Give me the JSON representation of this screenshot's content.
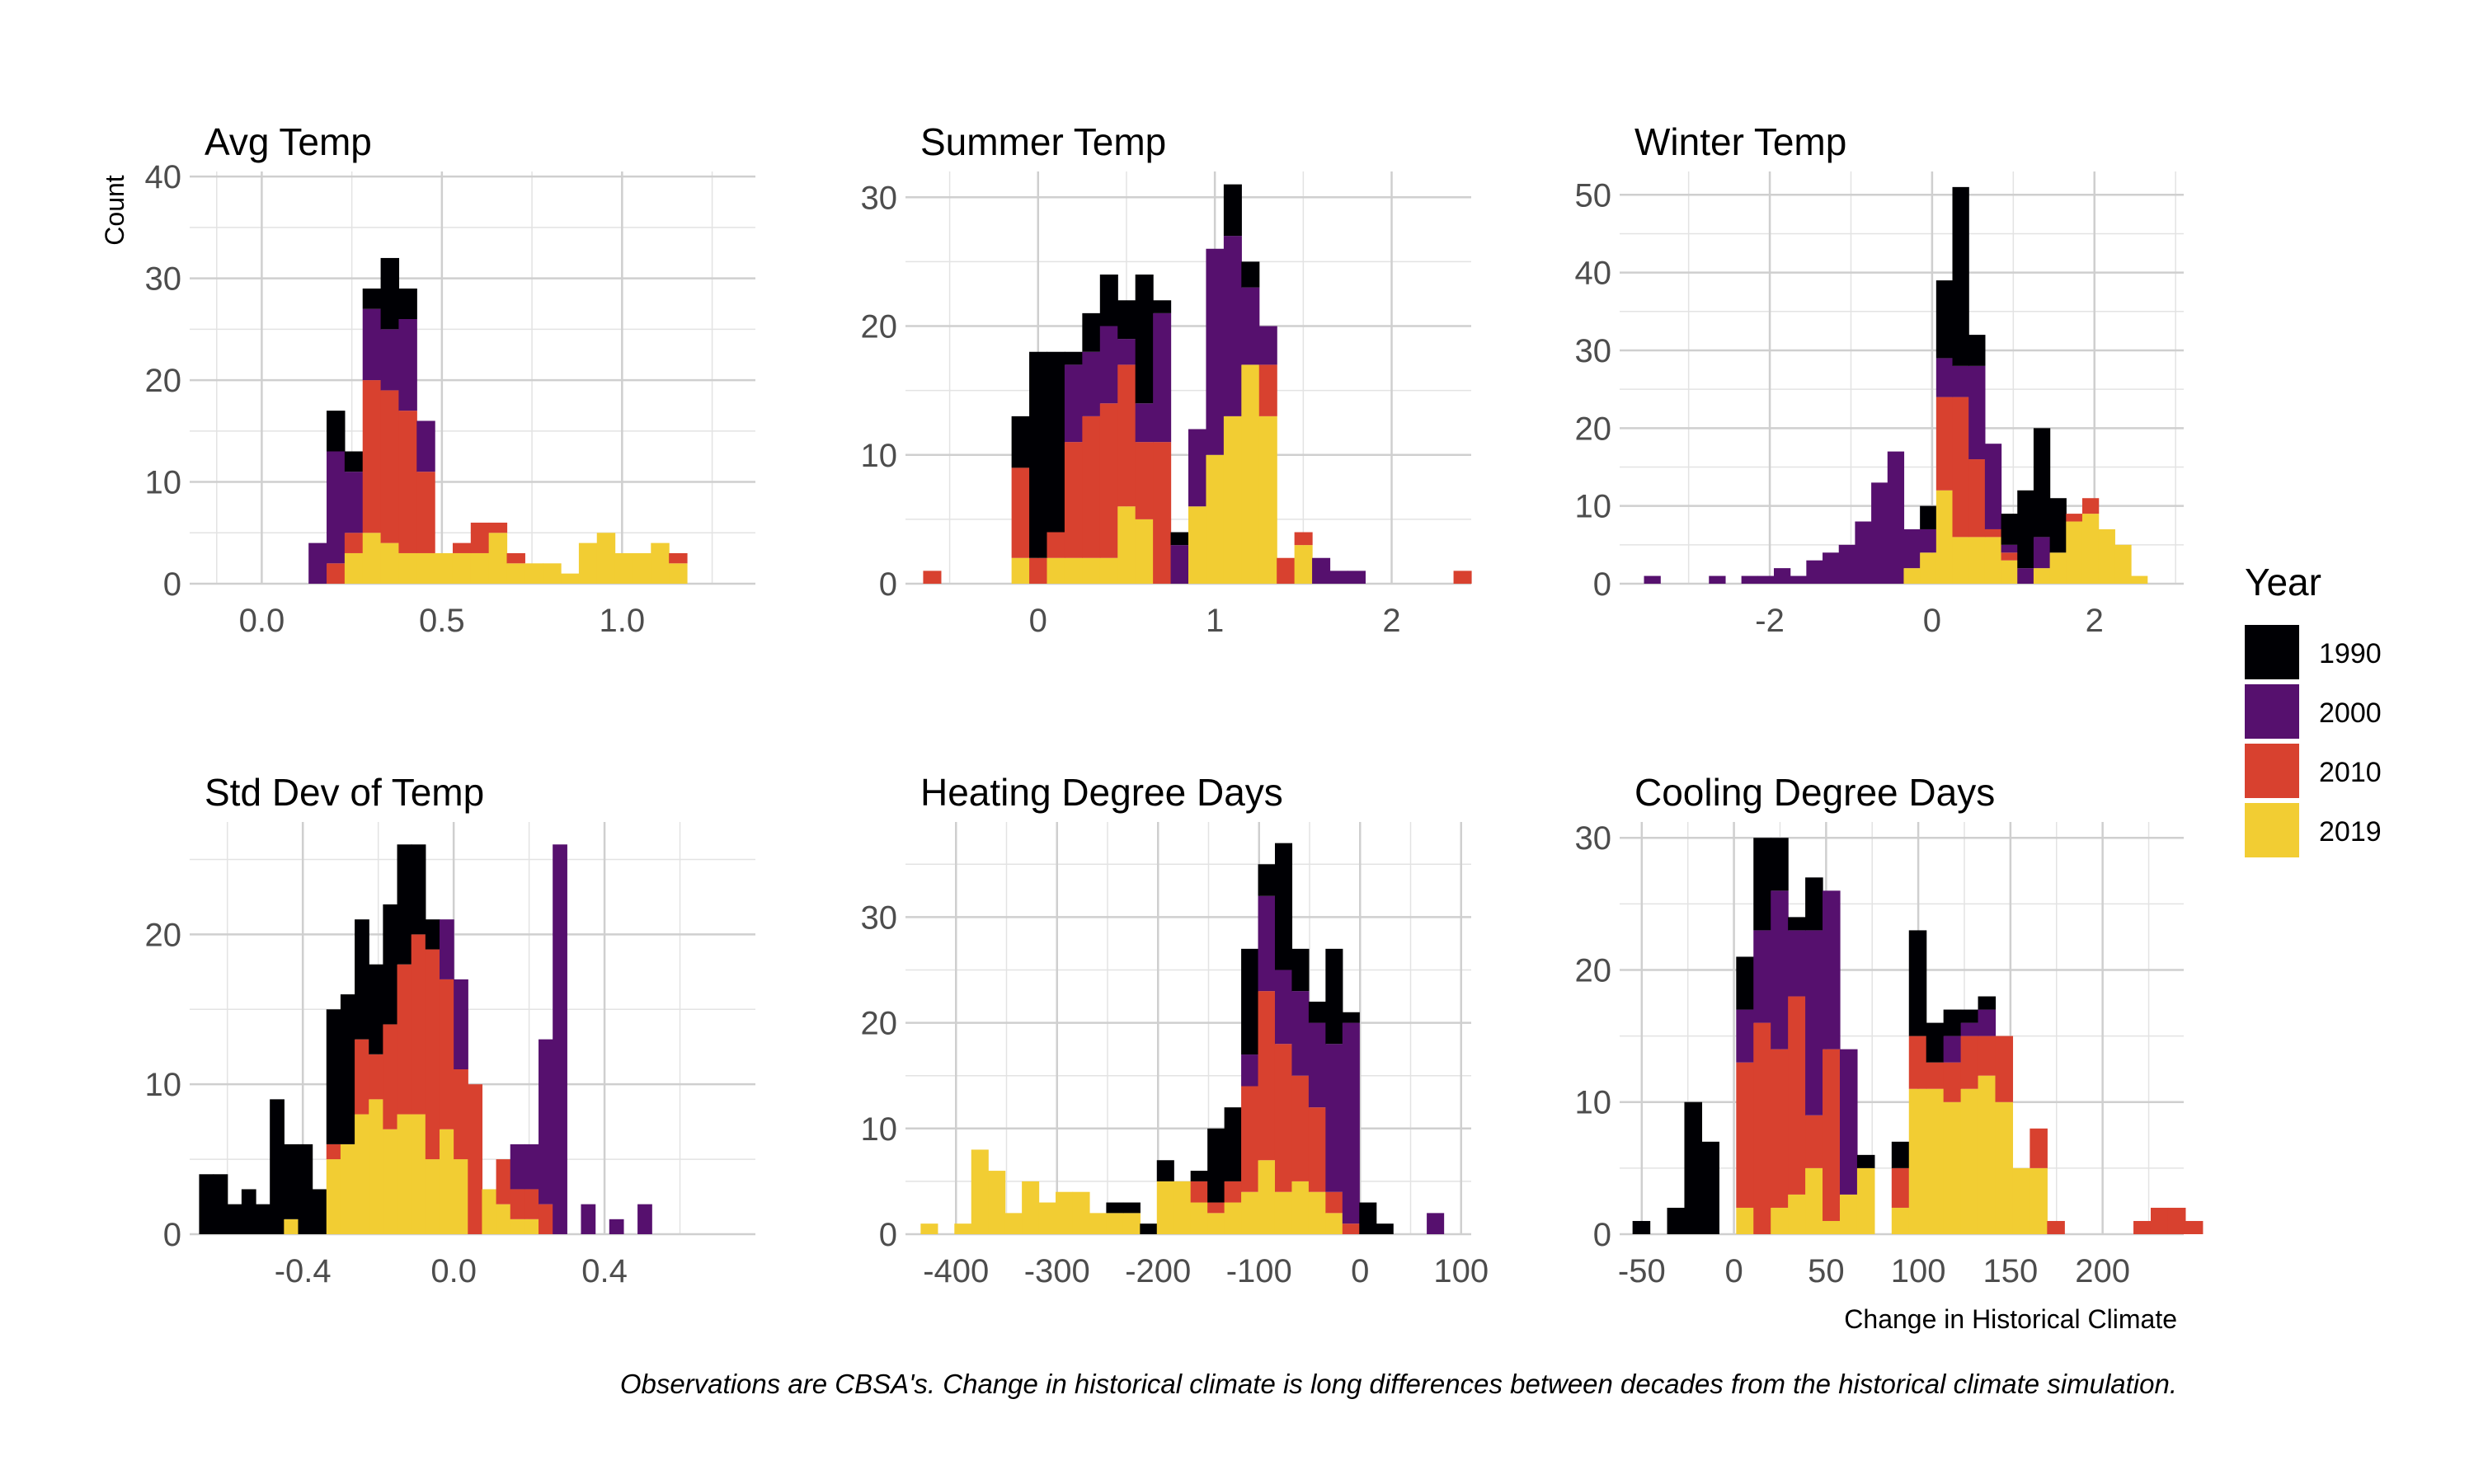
{
  "legend": {
    "title": "Year",
    "entries": [
      {
        "label": "1990",
        "color": "#000004"
      },
      {
        "label": "2000",
        "color": "#56106E"
      },
      {
        "label": "2010",
        "color": "#D8412F"
      },
      {
        "label": "2019",
        "color": "#F2CD33"
      }
    ]
  },
  "y_axis_label": "Count",
  "x_axis_label": "Change in Historical Climate",
  "caption": "Observations are CBSA's. Change in historical climate is long differences between decades from the historical climate simulation.",
  "chart_data": [
    {
      "type": "bar",
      "stacked": true,
      "title": "Avg Temp",
      "xlim": [
        -0.2,
        1.37
      ],
      "ylim": [
        0,
        40.5
      ],
      "xticks": [
        0.0,
        0.5,
        1.0
      ],
      "xtick_labels": [
        "0.0",
        "0.5",
        "1.0"
      ],
      "yticks": [
        0,
        10,
        20,
        30,
        40
      ],
      "xgrid": [
        -0.125,
        0.25,
        0.75,
        1.25
      ],
      "ygrid": [
        5,
        15,
        25,
        35
      ],
      "bin_start": -0.17,
      "bin_width": 0.05,
      "series": [
        {
          "name": "2019",
          "values": [
            0,
            0,
            0,
            0,
            0,
            0,
            0,
            0,
            3,
            5,
            4,
            3,
            3,
            3,
            3,
            3,
            5,
            2,
            2,
            2,
            1,
            4,
            5,
            3,
            3,
            4,
            2,
            0
          ]
        },
        {
          "name": "2010",
          "values": [
            0,
            0,
            0,
            0,
            0,
            0,
            0,
            2,
            2,
            15,
            15,
            14,
            8,
            0,
            1,
            3,
            1,
            1,
            0,
            0,
            0,
            0,
            0,
            0,
            0,
            0,
            1,
            0
          ]
        },
        {
          "name": "2000",
          "values": [
            0,
            0,
            0,
            0,
            0,
            0,
            4,
            11,
            6,
            7,
            6,
            9,
            5,
            0,
            0,
            0,
            0,
            0,
            0,
            0,
            0,
            0,
            0,
            0,
            0,
            0,
            0,
            0
          ]
        },
        {
          "name": "1990",
          "values": [
            0,
            0,
            0,
            0,
            0,
            0,
            0,
            4,
            2,
            2,
            7,
            3,
            0,
            0,
            0,
            0,
            0,
            0,
            0,
            0,
            0,
            0,
            0,
            0,
            0,
            0,
            0,
            0
          ]
        }
      ]
    },
    {
      "type": "bar",
      "stacked": true,
      "title": "Summer Temp",
      "xlim": [
        -0.75,
        2.45
      ],
      "ylim": [
        0,
        32
      ],
      "xticks": [
        0,
        1,
        2
      ],
      "xtick_labels": [
        "0",
        "1",
        "2"
      ],
      "yticks": [
        0,
        10,
        20,
        30
      ],
      "xgrid": [
        -0.5,
        0.5,
        1.5
      ],
      "ygrid": [
        5,
        15,
        25
      ],
      "bin_start": -0.65,
      "bin_width": 0.1,
      "series": [
        {
          "name": "2019",
          "values": [
            0,
            0,
            0,
            0,
            0,
            2,
            0,
            2,
            2,
            2,
            2,
            6,
            5,
            0,
            0,
            6,
            10,
            13,
            17,
            13,
            0,
            3,
            0,
            0,
            0,
            0,
            0,
            0,
            0,
            0,
            0
          ]
        },
        {
          "name": "2010",
          "values": [
            1,
            0,
            0,
            0,
            0,
            7,
            2,
            2,
            9,
            11,
            12,
            11,
            6,
            11,
            0,
            0,
            0,
            0,
            0,
            4,
            2,
            1,
            0,
            0,
            0,
            0,
            0,
            0,
            0,
            0,
            1
          ]
        },
        {
          "name": "2000",
          "values": [
            0,
            0,
            0,
            0,
            0,
            0,
            0,
            0,
            6,
            5,
            6,
            2,
            3,
            10,
            3,
            6,
            16,
            14,
            6,
            3,
            0,
            0,
            2,
            1,
            1,
            0,
            0,
            0,
            0,
            0,
            0
          ]
        },
        {
          "name": "1990",
          "values": [
            0,
            0,
            0,
            0,
            0,
            4,
            16,
            14,
            1,
            3,
            4,
            3,
            10,
            1,
            1,
            0,
            0,
            4,
            2,
            0,
            0,
            0,
            0,
            0,
            0,
            0,
            0,
            0,
            0,
            0,
            0
          ]
        }
      ]
    },
    {
      "type": "bar",
      "stacked": true,
      "title": "Winter Temp",
      "xlim": [
        -3.85,
        3.1
      ],
      "ylim": [
        0,
        53
      ],
      "xticks": [
        -2,
        0,
        2
      ],
      "xtick_labels": [
        "-2",
        "0",
        "2"
      ],
      "yticks": [
        0,
        10,
        20,
        30,
        40,
        50
      ],
      "xgrid": [
        -3,
        -1,
        1,
        3
      ],
      "ygrid": [
        5,
        15,
        25,
        35,
        45
      ],
      "bin_start": -3.55,
      "bin_width": 0.2,
      "series": [
        {
          "name": "2019",
          "values": [
            0,
            0,
            0,
            0,
            0,
            0,
            0,
            0,
            0,
            0,
            0,
            0,
            0,
            0,
            0,
            0,
            2,
            4,
            12,
            6,
            6,
            6,
            3,
            0,
            2,
            4,
            8,
            9,
            7,
            5,
            1
          ]
        },
        {
          "name": "2010",
          "values": [
            0,
            0,
            0,
            0,
            0,
            0,
            0,
            0,
            0,
            0,
            0,
            0,
            0,
            0,
            0,
            0,
            0,
            0,
            12,
            18,
            10,
            1,
            1,
            0,
            0,
            0,
            1,
            2,
            0,
            0,
            0
          ]
        },
        {
          "name": "2000",
          "values": [
            1,
            0,
            0,
            0,
            1,
            0,
            1,
            1,
            2,
            1,
            3,
            4,
            5,
            8,
            13,
            17,
            5,
            3,
            5,
            4,
            12,
            11,
            1,
            2,
            4,
            0,
            0,
            0,
            0,
            0,
            0
          ]
        },
        {
          "name": "1990",
          "values": [
            0,
            0,
            0,
            0,
            0,
            0,
            0,
            0,
            0,
            0,
            0,
            0,
            0,
            0,
            0,
            0,
            0,
            3,
            10,
            23,
            4,
            0,
            4,
            10,
            14,
            7,
            0,
            0,
            0,
            0,
            0
          ]
        }
      ]
    },
    {
      "type": "bar",
      "stacked": true,
      "title": "Std Dev of Temp",
      "xlim": [
        -0.7,
        0.8
      ],
      "ylim": [
        0,
        27.5
      ],
      "xticks": [
        -0.4,
        0.0,
        0.4
      ],
      "xtick_labels": [
        "-0.4",
        "0.0",
        "0.4"
      ],
      "yticks": [
        0,
        10,
        20
      ],
      "xgrid": [
        -0.6,
        -0.2,
        0.2,
        0.6
      ],
      "ygrid": [
        5,
        15,
        25
      ],
      "bin_start": -0.675,
      "bin_width": 0.0375,
      "series": [
        {
          "name": "2019",
          "values": [
            0,
            0,
            0,
            0,
            0,
            0,
            1,
            0,
            0,
            5,
            6,
            8,
            9,
            7,
            8,
            8,
            5,
            7,
            5,
            0,
            3,
            2,
            1,
            1,
            0,
            0,
            0,
            0,
            0,
            0,
            0,
            0,
            0,
            0,
            0,
            0,
            0,
            0,
            0,
            0
          ]
        },
        {
          "name": "2010",
          "values": [
            0,
            0,
            0,
            0,
            0,
            0,
            0,
            0,
            0,
            1,
            0,
            5,
            3,
            7,
            10,
            12,
            14,
            10,
            6,
            10,
            0,
            3,
            2,
            2,
            2,
            0,
            0,
            0,
            0,
            0,
            0,
            0,
            0,
            0,
            0,
            0,
            0,
            0,
            0,
            0
          ]
        },
        {
          "name": "2000",
          "values": [
            0,
            0,
            0,
            0,
            0,
            0,
            0,
            0,
            0,
            0,
            0,
            0,
            0,
            0,
            0,
            0,
            0,
            4,
            6,
            0,
            0,
            0,
            3,
            3,
            11,
            26,
            0,
            2,
            0,
            1,
            0,
            2,
            0,
            0,
            0,
            0,
            0,
            0,
            0,
            0
          ]
        },
        {
          "name": "1990",
          "values": [
            4,
            4,
            2,
            3,
            2,
            9,
            5,
            6,
            3,
            9,
            10,
            8,
            6,
            8,
            8,
            6,
            2,
            0,
            0,
            0,
            0,
            0,
            0,
            0,
            0,
            0,
            0,
            0,
            0,
            0,
            0,
            0,
            0,
            0,
            0,
            0,
            0,
            0,
            0,
            0
          ]
        }
      ]
    },
    {
      "type": "bar",
      "stacked": true,
      "title": "Heating Degree Days",
      "xlim": [
        -450,
        110
      ],
      "ylim": [
        0,
        39
      ],
      "xticks": [
        -400,
        -300,
        -200,
        -100,
        0,
        100
      ],
      "xtick_labels": [
        "-400",
        "-300",
        "-200",
        "-100",
        "0",
        "100"
      ],
      "yticks": [
        0,
        10,
        20,
        30
      ],
      "xgrid": [
        -350,
        -250,
        -150,
        -50,
        50
      ],
      "ygrid": [
        5,
        15,
        25,
        35
      ],
      "bin_start": -435,
      "bin_width": 16.7,
      "series": [
        {
          "name": "2019",
          "values": [
            1,
            0,
            1,
            8,
            6,
            2,
            5,
            3,
            4,
            4,
            2,
            2,
            2,
            0,
            5,
            5,
            3,
            2,
            3,
            4,
            7,
            4,
            5,
            4,
            2,
            0,
            0,
            0,
            0,
            0,
            0
          ]
        },
        {
          "name": "2010",
          "values": [
            0,
            0,
            0,
            0,
            0,
            0,
            0,
            0,
            0,
            0,
            0,
            0,
            0,
            0,
            0,
            0,
            2,
            1,
            2,
            10,
            16,
            14,
            10,
            8,
            2,
            1,
            0,
            0,
            0,
            0,
            0
          ]
        },
        {
          "name": "2000",
          "values": [
            0,
            0,
            0,
            0,
            0,
            0,
            0,
            0,
            0,
            0,
            0,
            0,
            0,
            0,
            0,
            0,
            0,
            0,
            0,
            3,
            9,
            7,
            8,
            8,
            14,
            19,
            0,
            0,
            0,
            0,
            2
          ]
        },
        {
          "name": "1990",
          "values": [
            0,
            0,
            0,
            0,
            0,
            0,
            0,
            0,
            0,
            0,
            0,
            1,
            1,
            1,
            2,
            0,
            1,
            7,
            7,
            10,
            3,
            12,
            4,
            2,
            9,
            1,
            3,
            1,
            0,
            0,
            0
          ]
        }
      ]
    },
    {
      "type": "bar",
      "stacked": true,
      "title": "Cooling Degree Days",
      "xlim": [
        -62,
        244
      ],
      "ylim": [
        0,
        31.2
      ],
      "xticks": [
        -50,
        0,
        50,
        100,
        150,
        200
      ],
      "xtick_labels": [
        "-50",
        "0",
        "50",
        "100",
        "150",
        "200"
      ],
      "yticks": [
        0,
        10,
        20,
        30
      ],
      "xgrid": [
        -25,
        25,
        75,
        125,
        175,
        225
      ],
      "ygrid": [
        5,
        15,
        25
      ],
      "bin_start": -55,
      "bin_width": 9.37,
      "series": [
        {
          "name": "2019",
          "values": [
            0,
            0,
            0,
            0,
            0,
            0,
            2,
            0,
            2,
            3,
            5,
            1,
            3,
            5,
            0,
            2,
            11,
            11,
            10,
            11,
            12,
            10,
            5,
            5,
            0,
            0,
            0,
            0,
            0,
            0,
            0,
            0,
            0
          ]
        },
        {
          "name": "2010",
          "values": [
            0,
            0,
            0,
            0,
            0,
            0,
            11,
            16,
            12,
            15,
            4,
            13,
            0,
            0,
            0,
            3,
            4,
            2,
            3,
            4,
            3,
            5,
            0,
            3,
            1,
            0,
            0,
            0,
            0,
            1,
            2,
            2,
            1
          ]
        },
        {
          "name": "2000",
          "values": [
            0,
            0,
            0,
            0,
            0,
            0,
            4,
            7,
            12,
            5,
            14,
            12,
            11,
            0,
            0,
            0,
            0,
            0,
            2,
            1,
            2,
            0,
            0,
            0,
            0,
            0,
            0,
            0,
            0,
            0,
            0,
            0,
            0
          ]
        },
        {
          "name": "1990",
          "values": [
            1,
            0,
            2,
            10,
            7,
            0,
            4,
            7,
            4,
            1,
            4,
            0,
            0,
            1,
            0,
            2,
            8,
            3,
            2,
            1,
            1,
            0,
            0,
            0,
            0,
            0,
            0,
            0,
            0,
            0,
            0,
            0,
            0
          ]
        }
      ]
    }
  ]
}
